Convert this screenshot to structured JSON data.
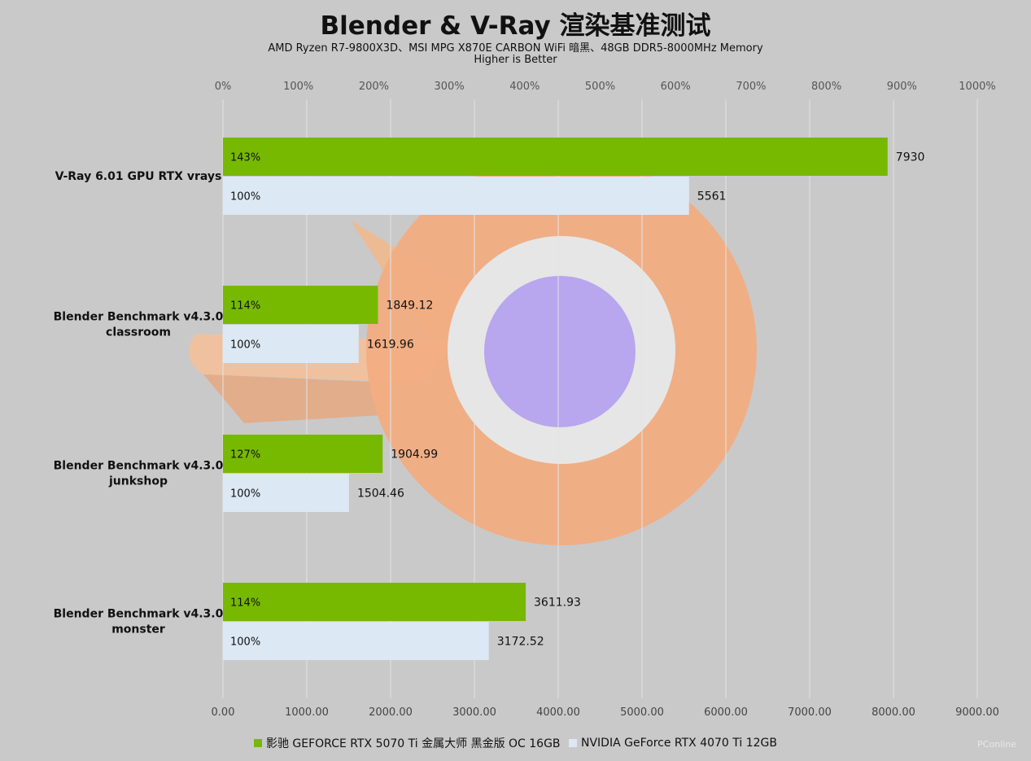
{
  "chart_data": {
    "type": "bar",
    "orientation": "horizontal",
    "title": "Blender & V-Ray 渲染基准测试",
    "subtitle_lines": [
      "AMD Ryzen R7-9800X3D、MSI MPG X870E CARBON WiFi 暗黑、48GB DDR5-8000MHz Memory",
      "Higher is Better"
    ],
    "categories": [
      [
        "V-Ray 6.01 GPU RTX vrays"
      ],
      [
        "Blender Benchmark v4.3.0",
        "classroom"
      ],
      [
        "Blender Benchmark v4.3.0",
        "junkshop"
      ],
      [
        "Blender Benchmark v4.3.0",
        "monster"
      ]
    ],
    "series": [
      {
        "name": "影驰 GEFORCE RTX 5070 Ti 金属大师 黑金版 OC 16GB",
        "color": "#76b900",
        "values": [
          7930,
          1849.12,
          1904.99,
          3611.93
        ],
        "value_labels": [
          "7930",
          "1849.12",
          "1904.99",
          "3611.93"
        ],
        "percent_labels": [
          "143%",
          "114%",
          "127%",
          "114%"
        ]
      },
      {
        "name": "NVIDIA GeForce RTX 4070 Ti 12GB",
        "color": "#dce8f4",
        "values": [
          5561,
          1619.96,
          1504.46,
          3172.52
        ],
        "value_labels": [
          "5561",
          "1619.96",
          "1504.46",
          "3172.52"
        ],
        "percent_labels": [
          "100%",
          "100%",
          "100%",
          "100%"
        ]
      }
    ],
    "x_axis": {
      "min": 0,
      "max": 9000,
      "ticks": [
        0,
        1000,
        2000,
        3000,
        4000,
        5000,
        6000,
        7000,
        8000,
        9000
      ],
      "tick_labels": [
        "0.00",
        "1000.00",
        "2000.00",
        "3000.00",
        "4000.00",
        "5000.00",
        "6000.00",
        "7000.00",
        "8000.00",
        "9000.00"
      ]
    },
    "x2_axis": {
      "min": 0,
      "max": 1000,
      "ticks": [
        0,
        100,
        200,
        300,
        400,
        500,
        600,
        700,
        800,
        900,
        1000
      ],
      "tick_labels": [
        "0%",
        "100%",
        "200%",
        "300%",
        "400%",
        "500%",
        "600%",
        "700%",
        "800%",
        "900%",
        "1000%"
      ]
    },
    "grid": true,
    "legend_position": "bottom"
  },
  "watermark": "PConline"
}
